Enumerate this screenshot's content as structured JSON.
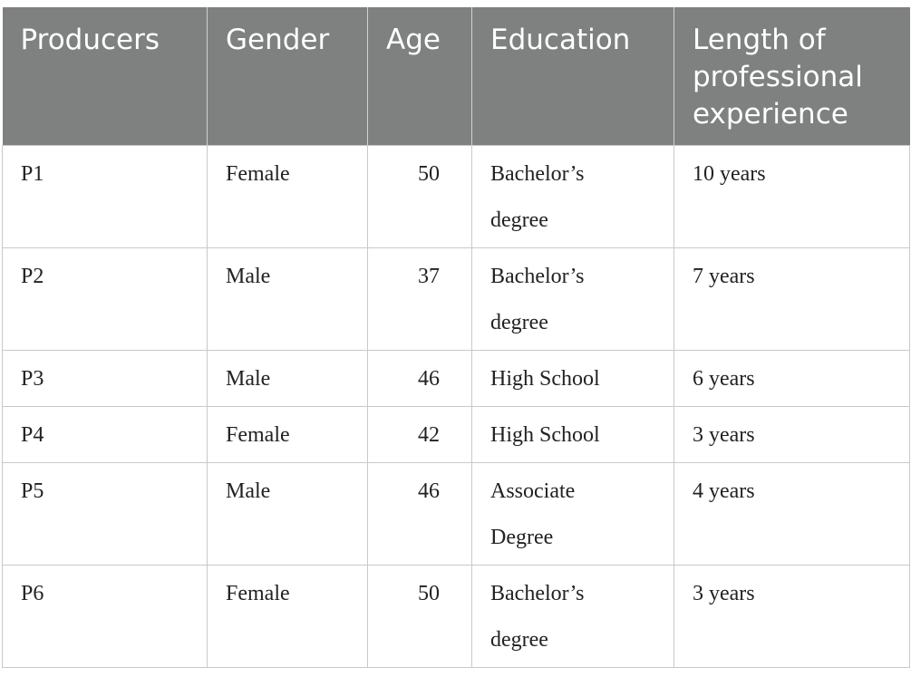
{
  "table": {
    "columns": [
      "Producers",
      "Gender",
      "Age",
      "Education",
      "Length of professional experience"
    ],
    "rows": [
      [
        "P1",
        "Female",
        50,
        "Bachelor’s degree",
        "10 years"
      ],
      [
        "P2",
        "Male",
        37,
        "Bachelor’s degree",
        "7 years"
      ],
      [
        "P3",
        "Male",
        46,
        "High School",
        "6 years"
      ],
      [
        "P4",
        "Female",
        42,
        "High School",
        "3 years"
      ],
      [
        "P5",
        "Male",
        46,
        "Associate Degree",
        "4 years"
      ],
      [
        "P6",
        "Female",
        50,
        "Bachelor’s degree",
        "3 years"
      ]
    ]
  }
}
